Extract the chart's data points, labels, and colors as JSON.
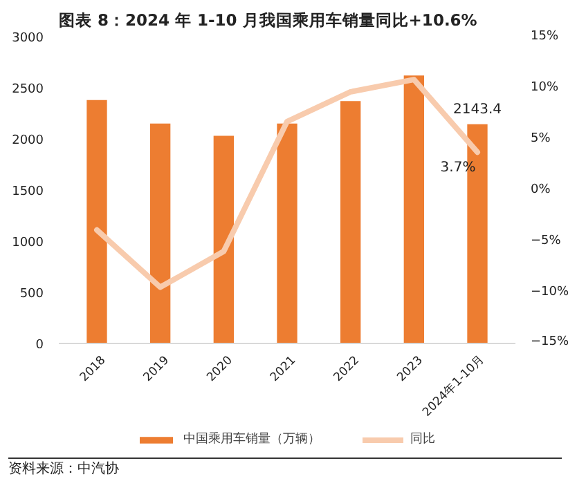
{
  "chart_data": {
    "type": "bar",
    "title": "图表 8：2024 年 1-10 月我国乘用车销量同比+10.6%",
    "categories": [
      "2018",
      "2019",
      "2020",
      "2021",
      "2022",
      "2023",
      "2024年1-10月"
    ],
    "series": [
      {
        "name": "中国乘用车销量（万辆）",
        "color": "#ed7d31",
        "values": [
          2380,
          2150,
          2030,
          2150,
          2370,
          2620,
          2143.4
        ],
        "value_labels": [
          null,
          null,
          null,
          null,
          null,
          null,
          "2143.4"
        ]
      },
      {
        "name": "同比",
        "color": "#f8cbad",
        "type": "line",
        "axis": "y2",
        "values": [
          -3.9,
          -9.5,
          -6.0,
          6.7,
          9.6,
          10.8,
          3.7
        ],
        "value_labels": [
          null,
          null,
          null,
          null,
          null,
          null,
          "3.7%"
        ]
      }
    ],
    "ylim": [
      0,
      3000
    ],
    "yticks": [
      0,
      500,
      1000,
      1500,
      2000,
      2500,
      3000
    ],
    "y2lim": [
      -15,
      15
    ],
    "y2ticks": [
      {
        "value": -15,
        "label": "−15%"
      },
      {
        "value": -10,
        "label": "−10%"
      },
      {
        "value": -5,
        "label": "−5%"
      },
      {
        "value": 0,
        "label": "0%"
      },
      {
        "value": 5,
        "label": "5%"
      },
      {
        "value": 10,
        "label": "10%"
      },
      {
        "value": 15,
        "label": "15%"
      }
    ],
    "grid": false,
    "legend": "bottom",
    "marker": "none",
    "annotations": [
      "资料来源：中汽协"
    ]
  }
}
